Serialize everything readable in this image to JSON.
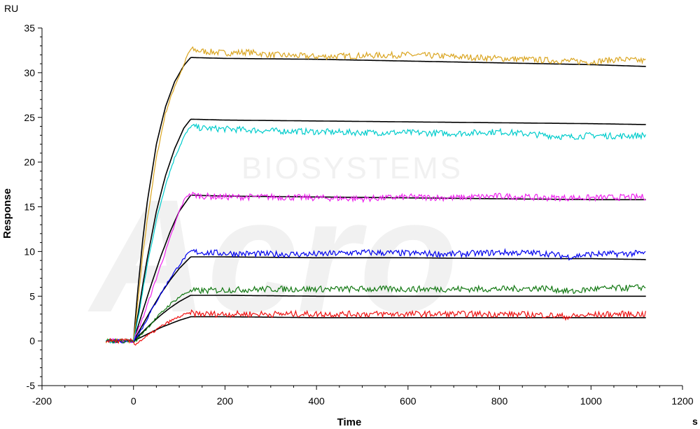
{
  "chart_data": {
    "type": "line",
    "xlabel": "Time",
    "ylabel": "Response",
    "y_unit": "RU",
    "x_unit": "s",
    "xlim": [
      -200,
      1200
    ],
    "ylim": [
      -5,
      35
    ],
    "x_ticks": [
      -200,
      0,
      200,
      400,
      600,
      800,
      1000,
      1200
    ],
    "y_ticks": [
      -5,
      0,
      5,
      10,
      15,
      20,
      25,
      30,
      35
    ],
    "watermark": {
      "large": "Acro",
      "small": "BIOSYSTEMS"
    },
    "association_end": 125,
    "measured_series": [
      {
        "color": "#DAA520",
        "baseline": 0.0,
        "x": [
          0,
          10,
          20,
          30,
          50,
          70,
          90,
          110,
          118,
          125,
          150,
          200,
          250,
          300,
          400,
          500,
          600,
          700,
          800,
          900,
          1000,
          1060,
          1120
        ],
        "y": [
          0.0,
          4.5,
          9.5,
          13.5,
          20.5,
          25.5,
          28.5,
          30.8,
          32.0,
          32.6,
          32.4,
          32.2,
          32.3,
          32.0,
          31.8,
          31.9,
          32.0,
          31.8,
          31.6,
          31.4,
          31.2,
          31.5,
          31.3
        ]
      },
      {
        "color": "#00CCCC",
        "baseline": 0.0,
        "x": [
          0,
          10,
          20,
          30,
          50,
          70,
          90,
          110,
          125,
          150,
          200,
          300,
          400,
          500,
          600,
          700,
          800,
          900,
          950,
          1000,
          1060,
          1120
        ],
        "y": [
          0.0,
          2.5,
          5.5,
          8.5,
          13.5,
          17.5,
          20.5,
          22.8,
          24.0,
          23.8,
          23.7,
          23.5,
          23.4,
          23.3,
          23.3,
          23.2,
          23.4,
          23.0,
          22.8,
          23.0,
          22.9,
          23.0
        ]
      },
      {
        "color": "#EE22EE",
        "baseline": 0.0,
        "x": [
          0,
          20,
          40,
          60,
          80,
          100,
          115,
          125,
          150,
          200,
          300,
          400,
          500,
          600,
          700,
          800,
          900,
          1000,
          1120
        ],
        "y": [
          0.0,
          2.5,
          5.5,
          8.5,
          11.5,
          14.5,
          16.2,
          16.4,
          16.2,
          16.1,
          16.1,
          16.0,
          15.9,
          16.1,
          16.0,
          16.2,
          16.0,
          16.0,
          16.1
        ]
      },
      {
        "color": "#0000EE",
        "baseline": 0.0,
        "x": [
          0,
          20,
          40,
          60,
          80,
          100,
          115,
          125,
          150,
          200,
          300,
          400,
          500,
          600,
          700,
          800,
          900,
          950,
          1000,
          1120
        ],
        "y": [
          0.0,
          1.5,
          3.5,
          5.3,
          7.0,
          8.5,
          9.5,
          10.0,
          9.9,
          9.8,
          9.7,
          9.7,
          9.9,
          9.8,
          9.7,
          9.9,
          9.8,
          9.4,
          9.7,
          9.8
        ]
      },
      {
        "color": "#127812",
        "baseline": 0.0,
        "x": [
          0,
          20,
          40,
          60,
          80,
          100,
          115,
          125,
          150,
          200,
          300,
          400,
          500,
          600,
          700,
          800,
          900,
          960,
          1000,
          1060,
          1120
        ],
        "y": [
          -0.3,
          0.9,
          2.0,
          3.1,
          4.1,
          4.9,
          5.4,
          5.6,
          5.6,
          5.7,
          5.8,
          5.8,
          5.8,
          5.8,
          5.8,
          5.8,
          5.9,
          5.5,
          5.8,
          5.9,
          6.0
        ]
      },
      {
        "color": "#EE1111",
        "baseline": 0.0,
        "x": [
          0,
          20,
          40,
          60,
          80,
          100,
          115,
          125,
          150,
          200,
          300,
          400,
          500,
          600,
          700,
          800,
          900,
          950,
          1000,
          1060,
          1120
        ],
        "y": [
          -0.5,
          0.2,
          0.9,
          1.6,
          2.2,
          2.7,
          3.0,
          3.1,
          3.0,
          3.0,
          3.0,
          3.0,
          3.0,
          3.0,
          3.0,
          3.0,
          2.9,
          2.7,
          2.9,
          3.0,
          3.0
        ]
      }
    ],
    "fit_series": [
      {
        "color": "#000000",
        "x": [
          0,
          10,
          20,
          30,
          50,
          70,
          90,
          110,
          125,
          200,
          400,
          600,
          800,
          1000,
          1120
        ],
        "y": [
          0,
          6.0,
          11.2,
          15.5,
          22.0,
          26.2,
          29.0,
          30.8,
          31.7,
          31.6,
          31.5,
          31.3,
          31.1,
          30.9,
          30.7
        ]
      },
      {
        "color": "#000000",
        "x": [
          0,
          10,
          20,
          30,
          50,
          70,
          90,
          110,
          125,
          200,
          400,
          600,
          800,
          1000,
          1120
        ],
        "y": [
          0,
          3.0,
          6.2,
          9.2,
          14.5,
          18.5,
          21.5,
          23.8,
          24.8,
          24.7,
          24.6,
          24.5,
          24.4,
          24.3,
          24.2
        ]
      },
      {
        "color": "#000000",
        "x": [
          0,
          20,
          40,
          60,
          80,
          100,
          125,
          200,
          400,
          600,
          800,
          1000,
          1120
        ],
        "y": [
          0,
          3.3,
          6.5,
          9.5,
          12.2,
          14.5,
          16.3,
          16.2,
          16.1,
          16.0,
          15.9,
          15.8,
          15.8
        ]
      },
      {
        "color": "#000000",
        "x": [
          0,
          20,
          40,
          60,
          80,
          100,
          125,
          200,
          400,
          600,
          800,
          1000,
          1120
        ],
        "y": [
          0,
          1.8,
          3.6,
          5.3,
          6.8,
          8.1,
          9.4,
          9.4,
          9.3,
          9.3,
          9.2,
          9.2,
          9.1
        ]
      },
      {
        "color": "#000000",
        "x": [
          0,
          20,
          40,
          60,
          80,
          100,
          125,
          200,
          400,
          600,
          800,
          1000,
          1120
        ],
        "y": [
          0,
          1.0,
          2.0,
          2.9,
          3.7,
          4.4,
          5.1,
          5.1,
          5.0,
          5.0,
          5.0,
          5.0,
          5.0
        ]
      },
      {
        "color": "#000000",
        "x": [
          0,
          20,
          40,
          60,
          80,
          100,
          125,
          200,
          400,
          600,
          800,
          1000,
          1120
        ],
        "y": [
          0,
          0.5,
          1.0,
          1.5,
          1.9,
          2.3,
          2.7,
          2.7,
          2.6,
          2.6,
          2.6,
          2.6,
          2.6
        ]
      }
    ]
  }
}
